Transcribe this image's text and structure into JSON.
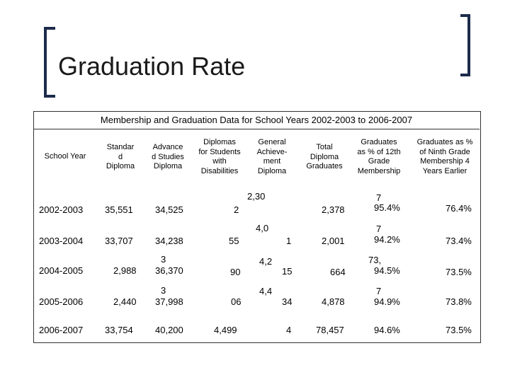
{
  "title": "Graduation Rate",
  "caption": "Membership and Graduation Data for School Years 2002-2003 to 2006-2007",
  "headers": [
    {
      "lines": [
        "School Year"
      ]
    },
    {
      "lines": [
        "Standar",
        "d",
        "Diploma"
      ]
    },
    {
      "lines": [
        "Advance",
        "d Studies",
        "Diploma"
      ]
    },
    {
      "lines": [
        "Diplomas",
        "for Students",
        "with",
        "Disabilities"
      ]
    },
    {
      "lines": [
        "General",
        "Achieve-",
        "ment",
        "Diploma"
      ]
    },
    {
      "lines": [
        "Total",
        "Diploma",
        "Graduates"
      ]
    },
    {
      "lines": [
        "Graduates",
        "as % of 12th",
        "Grade",
        "Membership"
      ]
    },
    {
      "lines": [
        "Graduates as %",
        "of Ninth Grade",
        "Membership 4",
        "Years Earlier"
      ]
    }
  ],
  "rows": [
    {
      "year": "2002-2003",
      "standard": "35,551",
      "advanced_a": "",
      "advanced_b": "34,525",
      "disabilities": "2",
      "general": "2,30",
      "general_b": "",
      "total": "2,378",
      "pct12_a": "7",
      "pct12_b": "95.4%",
      "pct9": "76.4%"
    },
    {
      "year": "2003-2004",
      "standard": "33,707",
      "advanced_a": "",
      "advanced_b": "34,238",
      "disabilities": "55",
      "general": "4,0",
      "general_b": "1",
      "total": "2,001",
      "pct12_a": "7",
      "pct12_b": "94.2%",
      "pct9": "73.4%"
    },
    {
      "year": "2004-2005",
      "standard": "2,988",
      "advanced_a": "3",
      "advanced_b": "36,370",
      "disabilities": "90",
      "general": "4,2",
      "general_b": "15",
      "total": "664",
      "pct12_a": "73,",
      "pct12_b": "94.5%",
      "pct9": "73.5%"
    },
    {
      "year": "2005-2006",
      "standard": "2,440",
      "advanced_a": "3",
      "advanced_b": "37,998",
      "disabilities": "06",
      "general": "4,4",
      "general_b": "34",
      "total": "4,878",
      "pct12_a": "7",
      "pct12_b": "94.9%",
      "pct9": "73.8%"
    },
    {
      "year": "2006-2007",
      "standard": "33,754",
      "advanced_a": "",
      "advanced_b": "40,200",
      "disabilities": "4,499",
      "general": "",
      "general_b": "4",
      "total": "78,457",
      "pct12_a": "",
      "pct12_b": "94.6%",
      "pct9": "73.5%"
    }
  ]
}
